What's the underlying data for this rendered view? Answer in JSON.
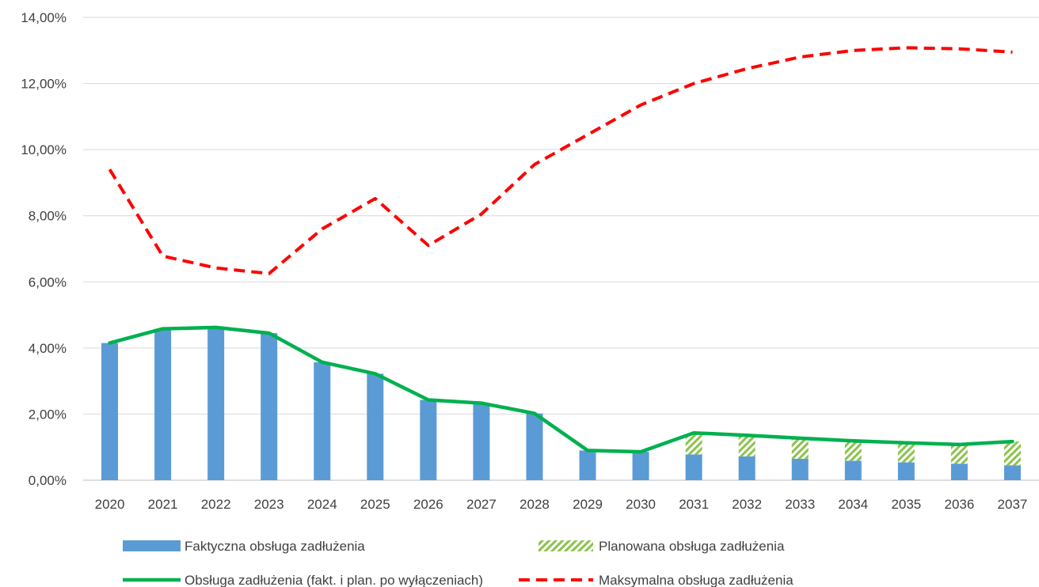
{
  "chart_data": {
    "type": "bar",
    "title": "",
    "xlabel": "",
    "ylabel": "",
    "categories": [
      "2020",
      "2021",
      "2022",
      "2023",
      "2024",
      "2025",
      "2026",
      "2027",
      "2028",
      "2029",
      "2030",
      "2031",
      "2032",
      "2033",
      "2034",
      "2035",
      "2036",
      "2037"
    ],
    "ylim": [
      0,
      14
    ],
    "yticks": [
      "0,00%",
      "2,00%",
      "4,00%",
      "6,00%",
      "8,00%",
      "10,00%",
      "12,00%",
      "14,00%"
    ],
    "grid": true,
    "legend_position": "bottom",
    "series": [
      {
        "name": "Faktyczna obsługa zadłużenia",
        "kind": "bar-stacked",
        "color": "#5b9bd5",
        "values": [
          4.15,
          4.58,
          4.62,
          4.45,
          3.57,
          3.22,
          2.43,
          2.33,
          2.02,
          0.9,
          0.86,
          0.78,
          0.72,
          0.65,
          0.59,
          0.54,
          0.5,
          0.45
        ]
      },
      {
        "name": "Planowana obsługa zadłużenia",
        "kind": "bar-stacked-hatched",
        "color": "#8bc34a",
        "values": [
          0,
          0,
          0,
          0,
          0,
          0,
          0,
          0,
          0,
          0,
          0,
          0.65,
          0.64,
          0.62,
          0.6,
          0.59,
          0.58,
          0.72
        ]
      },
      {
        "name": "Obsługa zadłużenia (fakt. i plan. po wyłączeniach)",
        "kind": "line-solid",
        "color": "#00b050",
        "values": [
          4.15,
          4.58,
          4.62,
          4.45,
          3.57,
          3.22,
          2.43,
          2.33,
          2.02,
          0.9,
          0.86,
          1.43,
          1.36,
          1.27,
          1.19,
          1.13,
          1.08,
          1.17
        ]
      },
      {
        "name": "Maksymalna obsługa zadłużenia",
        "kind": "line-dashed",
        "color": "#ff0000",
        "values": [
          9.4,
          6.78,
          6.42,
          6.25,
          7.6,
          8.52,
          7.1,
          8.05,
          9.55,
          10.45,
          11.35,
          12.0,
          12.45,
          12.8,
          13.0,
          13.08,
          13.05,
          12.95
        ]
      }
    ]
  }
}
